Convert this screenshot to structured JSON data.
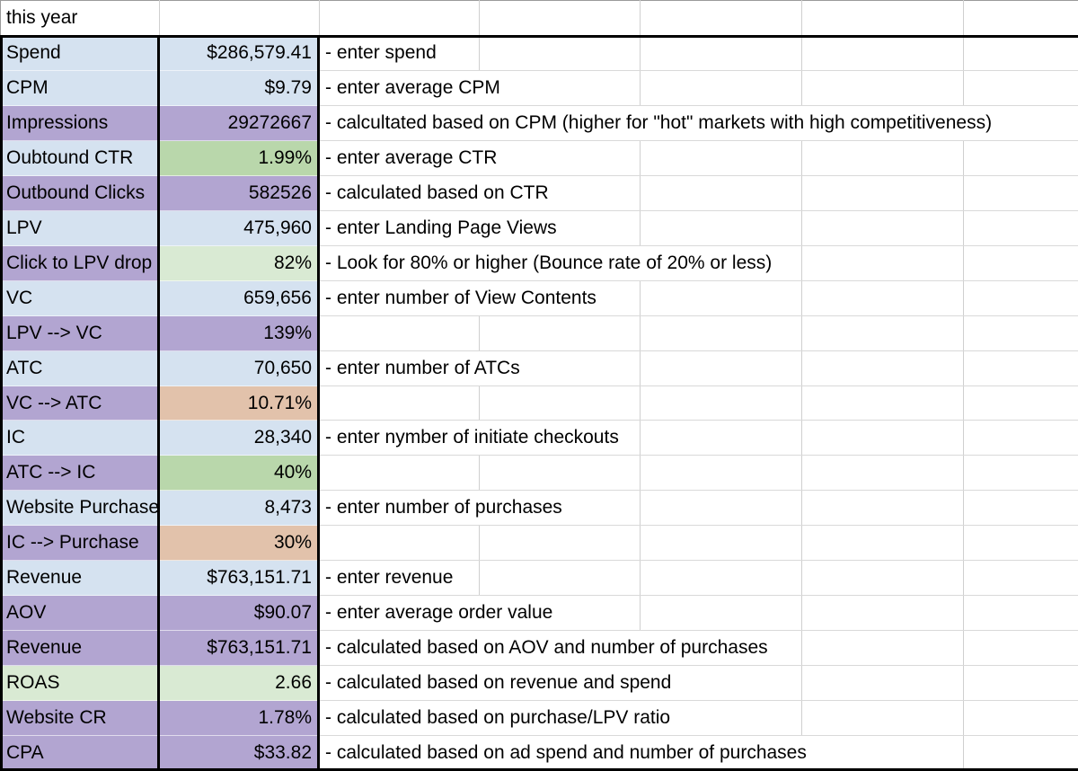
{
  "header": {
    "title": "this year"
  },
  "palette": {
    "blue": "#d5e2f0",
    "purple": "#b2a5d1",
    "green": "#b9d7ab",
    "lightgreen": "#d9ead3",
    "tan": "#e2c2ab",
    "gridline": "#cfcfcf",
    "thick_border": "#000000"
  },
  "rows": [
    {
      "label": "Spend",
      "value": "$286,579.41",
      "note": "- enter spend",
      "label_color": "blue",
      "value_color": "blue"
    },
    {
      "label": "CPM",
      "value": "$9.79",
      "note": "- enter average CPM",
      "label_color": "blue",
      "value_color": "blue"
    },
    {
      "label": "Impressions",
      "value": "29272667",
      "note": "- calcultated based on CPM (higher for \"hot\" markets with high competitiveness)",
      "label_color": "purple",
      "value_color": "purple"
    },
    {
      "label": "Oubtound CTR",
      "value": "1.99%",
      "note": "- enter average CTR",
      "label_color": "blue",
      "value_color": "green"
    },
    {
      "label": "Outbound Clicks",
      "value": "582526",
      "note": "- calculated based on CTR",
      "label_color": "purple",
      "value_color": "purple"
    },
    {
      "label": "LPV",
      "value": "475,960",
      "note": "- enter Landing Page Views",
      "label_color": "blue",
      "value_color": "blue"
    },
    {
      "label": "Click to LPV drop",
      "value": "82%",
      "note": "- Look for 80% or higher (Bounce rate of 20% or less)",
      "label_color": "purple",
      "value_color": "lightgreen"
    },
    {
      "label": "VC",
      "value": "659,656",
      "note": "- enter number of View Contents",
      "label_color": "blue",
      "value_color": "blue"
    },
    {
      "label": "LPV --> VC",
      "value": "139%",
      "note": "",
      "label_color": "purple",
      "value_color": "purple"
    },
    {
      "label": "ATC",
      "value": "70,650",
      "note": "- enter number of ATCs",
      "label_color": "blue",
      "value_color": "blue"
    },
    {
      "label": "VC --> ATC",
      "value": "10.71%",
      "note": "",
      "label_color": "purple",
      "value_color": "tan"
    },
    {
      "label": "IC",
      "value": "28,340",
      "note": "- enter nymber of initiate checkouts",
      "label_color": "blue",
      "value_color": "blue"
    },
    {
      "label": "ATC --> IC",
      "value": "40%",
      "note": "",
      "label_color": "purple",
      "value_color": "green"
    },
    {
      "label": "Website Purchase",
      "value": "8,473",
      "note": "- enter number of purchases",
      "label_color": "blue",
      "value_color": "blue"
    },
    {
      "label": "IC --> Purchase",
      "value": "30%",
      "note": "",
      "label_color": "purple",
      "value_color": "tan"
    },
    {
      "label": "Revenue",
      "value": "$763,151.71",
      "note": "- enter revenue",
      "label_color": "blue",
      "value_color": "blue"
    },
    {
      "label": "AOV",
      "value": "$90.07",
      "note": "- enter average order value",
      "label_color": "purple",
      "value_color": "purple"
    },
    {
      "label": "Revenue",
      "value": "$763,151.71",
      "note": "- calculated based on AOV and number of purchases",
      "label_color": "purple",
      "value_color": "purple"
    },
    {
      "label": "ROAS",
      "value": "2.66",
      "note": "- calculated based on revenue and spend",
      "label_color": "lightgreen",
      "value_color": "lightgreen"
    },
    {
      "label": "Website CR",
      "value": "1.78%",
      "note": "- calculated based on purchase/LPV ratio",
      "label_color": "purple",
      "value_color": "purple"
    },
    {
      "label": "CPA",
      "value": "$33.82",
      "note": "- calculated based on ad spend and number of purchases",
      "label_color": "purple",
      "value_color": "purple"
    }
  ]
}
